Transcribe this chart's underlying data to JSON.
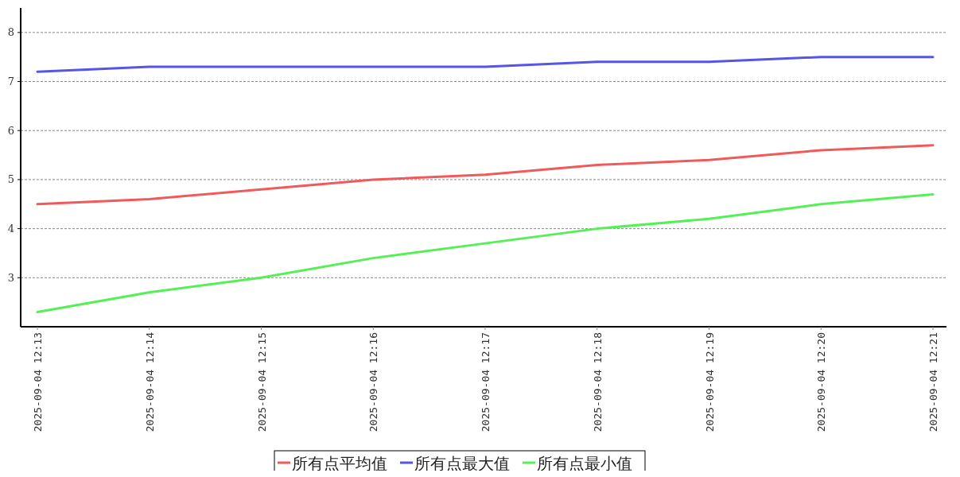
{
  "chart_data": {
    "type": "line",
    "categories": [
      "2025-09-04 12:13",
      "2025-09-04 12:14",
      "2025-09-04 12:15",
      "2025-09-04 12:16",
      "2025-09-04 12:17",
      "2025-09-04 12:18",
      "2025-09-04 12:19",
      "2025-09-04 12:20",
      "2025-09-04 12:21"
    ],
    "series": [
      {
        "name": "所有点平均值",
        "color": "#f05a5a",
        "values": [
          4.5,
          4.6,
          4.8,
          5.0,
          5.1,
          5.3,
          5.4,
          5.6,
          5.7
        ]
      },
      {
        "name": "所有点最大值",
        "color": "#5555e8",
        "values": [
          7.2,
          7.3,
          7.3,
          7.3,
          7.3,
          7.4,
          7.4,
          7.5,
          7.5
        ]
      },
      {
        "name": "所有点最小值",
        "color": "#55f055",
        "values": [
          2.3,
          2.7,
          3.0,
          3.4,
          3.7,
          4.0,
          4.2,
          4.5,
          4.7
        ]
      }
    ],
    "ylim": [
      2,
      8.5
    ],
    "yticks": [
      3,
      4,
      5,
      6,
      7,
      8
    ],
    "grid": "y",
    "legend": "bottom",
    "marker": "none",
    "line_style": "solid"
  }
}
